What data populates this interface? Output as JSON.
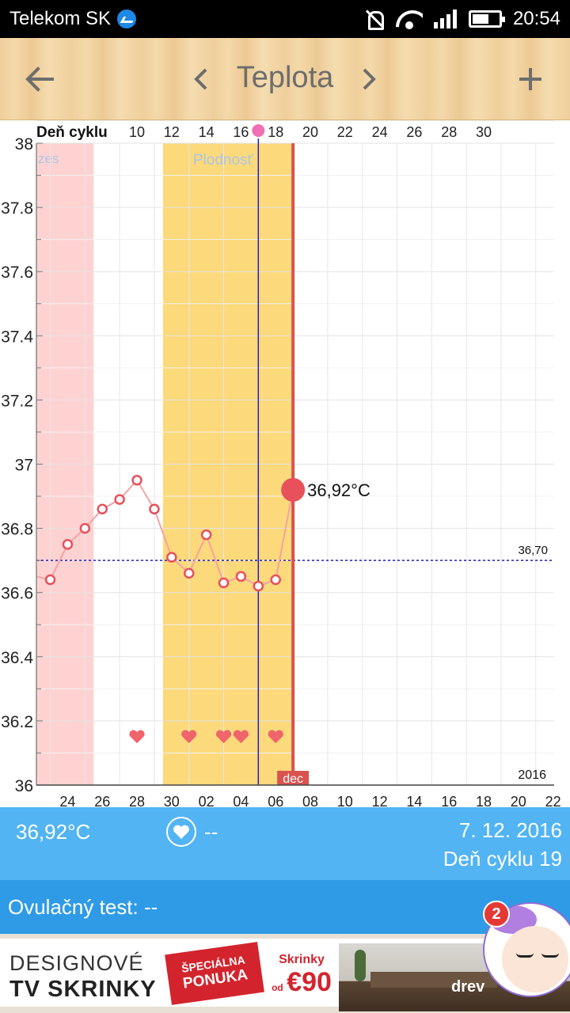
{
  "status_bar": {
    "carrier": "Telekom SK",
    "time": "20:54"
  },
  "toolbar": {
    "back_icon": "arrow-left",
    "prev_icon": "chevron-left",
    "title": "Teplota",
    "next_icon": "chevron-right",
    "add_icon": "plus"
  },
  "chart": {
    "top_axis_label": "Deň cyklu",
    "zone_menses_label": "zes",
    "zone_fertile_label": "Plodnosť",
    "reference_value_label": "36,70",
    "year_label": "2016",
    "month_tag": "dec",
    "current_value_label": "36,92°C"
  },
  "chart_data": {
    "type": "line",
    "ylim": [
      36,
      38
    ],
    "yticks": [
      "36",
      "36.2",
      "36.4",
      "36.6",
      "36.8",
      "37",
      "37.2",
      "37.4",
      "37.6",
      "37.8",
      "38"
    ],
    "top_ticks": [
      "10",
      "12",
      "14",
      "16",
      "18",
      "20",
      "22",
      "24",
      "26",
      "28",
      "30"
    ],
    "bottom_ticks": [
      "24",
      "26",
      "28",
      "30",
      "02",
      "04",
      "06",
      "08",
      "10",
      "12",
      "14",
      "16",
      "18",
      "20",
      "22"
    ],
    "series": [
      {
        "x": [
          "23",
          "24",
          "25",
          "26",
          "27",
          "28",
          "29",
          "30",
          "01",
          "02",
          "03",
          "04",
          "05",
          "06",
          "07"
        ],
        "values": [
          36.64,
          36.75,
          36.8,
          36.86,
          36.89,
          36.95,
          36.86,
          36.71,
          36.66,
          36.78,
          36.63,
          36.65,
          36.62,
          36.64,
          36.92
        ]
      }
    ],
    "reference_line": 36.7,
    "menses_range": [
      "22",
      "25"
    ],
    "fertile_range": [
      "30",
      "07"
    ],
    "current_day_marker": "05",
    "heart_days": [
      "28",
      "01",
      "03",
      "04",
      "06"
    ],
    "colors": {
      "line": "#f4a3a3",
      "point": "#e8505b",
      "menses": "#ffd2d2",
      "fertile": "#fcd97a",
      "today_line": "#d9534f",
      "current_day_line": "#1f1fc8",
      "reference": "#1f1fc8"
    }
  },
  "info": {
    "temperature": "36,92°C",
    "heart_icon": "heart-circle",
    "heart_value": "--",
    "date": "7. 12. 2016",
    "cycle_day": "Deň cyklu 19"
  },
  "ovulation_test": {
    "label": "Ovulačný test: --"
  },
  "ad": {
    "line1": "DESIGNOVÉ",
    "line2": "TV SKRINKY",
    "badge_line1": "ŠPECIÁLNA",
    "badge_line2": "PONUKA",
    "price_title": "Skrinky",
    "price_prefix": "od",
    "price_value": "€90",
    "brand": "drev"
  },
  "chat_bubble": {
    "badge_count": "2"
  }
}
